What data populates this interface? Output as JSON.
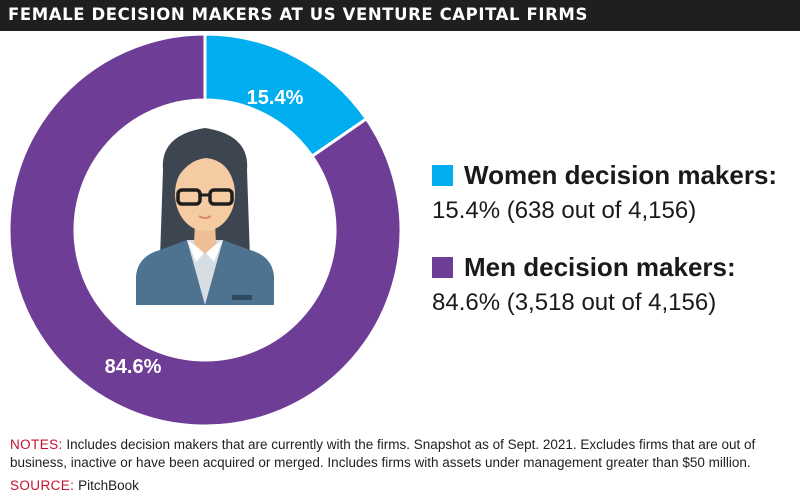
{
  "header": {
    "title": "FEMALE DECISION MAKERS AT US VENTURE CAPITAL FIRMS"
  },
  "chart_data": {
    "type": "pie",
    "style": "donut",
    "title": "FEMALE DECISION MAKERS AT US VENTURE CAPITAL FIRMS",
    "center_icon": "businesswoman-avatar-icon",
    "slices": [
      {
        "label": "Women decision makers:",
        "value": 15.4,
        "display": "15.4%",
        "detail": "15.4% (638 out of 4,156)",
        "count": 638,
        "total": 4156,
        "color": "#00aeef"
      },
      {
        "label": "Men decision makers:",
        "value": 84.6,
        "display": "84.6%",
        "detail": "84.6% (3,518 out of 4,156)",
        "count": 3518,
        "total": 4156,
        "color": "#6e3d96"
      }
    ],
    "legend_position": "right"
  },
  "footer": {
    "notes_label": "NOTES:",
    "notes_text": " Includes decision makers that are currently with the firms. Snapshot as of Sept. 2021. Excludes firms that are out of business, inactive or have been acquired or merged. Includes firms with assets under management greater than $50 million.",
    "source_label": "SOURCE:",
    "source_text": " PitchBook"
  }
}
